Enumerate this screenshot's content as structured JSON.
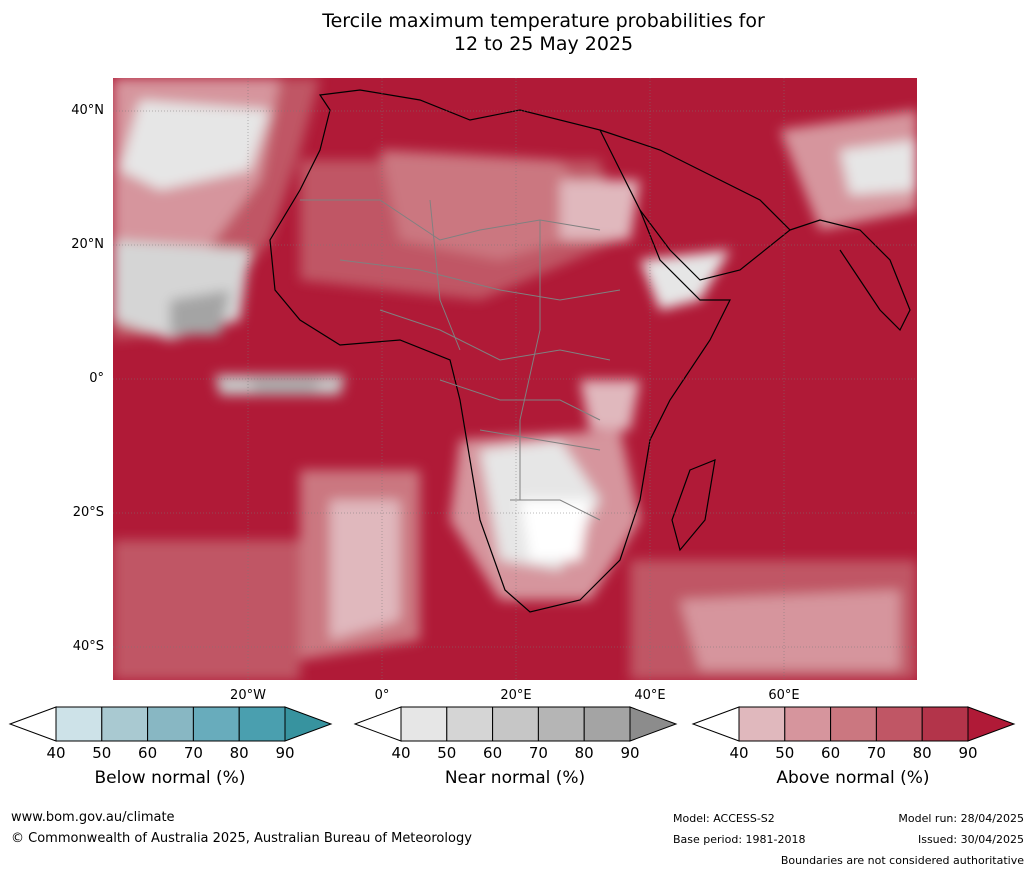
{
  "title_line1": "Tercile maximum temperature probabilities for",
  "title_line2": "12 to 25 May 2025",
  "map": {
    "lat_labels": [
      "40°N",
      "20°N",
      "0°",
      "20°S",
      "40°S"
    ],
    "lon_labels": [
      "20°W",
      "0°",
      "20°E",
      "40°E",
      "60°E"
    ]
  },
  "colorbars": {
    "below": {
      "title": "Below normal (%)",
      "ticks": [
        "40",
        "50",
        "60",
        "70",
        "80",
        "90"
      ],
      "colors": [
        "#ffffff",
        "#cde2e8",
        "#a9c9d1",
        "#88b7c3",
        "#68acbc",
        "#4a9faf",
        "#37939f"
      ]
    },
    "near": {
      "title": "Near normal (%)",
      "ticks": [
        "40",
        "50",
        "60",
        "70",
        "80",
        "90"
      ],
      "colors": [
        "#ffffff",
        "#e6e6e6",
        "#d5d5d5",
        "#c6c6c6",
        "#b5b5b5",
        "#a4a4a4",
        "#8c8c8c"
      ]
    },
    "above": {
      "title": "Above normal (%)",
      "ticks": [
        "40",
        "50",
        "60",
        "70",
        "80",
        "90"
      ],
      "colors": [
        "#ffffff",
        "#e0b8bd",
        "#d6959d",
        "#cb7780",
        "#c05665",
        "#b3344a",
        "#b01a37"
      ]
    }
  },
  "footer": {
    "website": "www.bom.gov.au/climate",
    "copyright": "© Commonwealth of Australia 2025, Australian Bureau of Meteorology",
    "model": "Model: ACCESS-S2",
    "base_period": "Base period: 1981-2018",
    "model_run": "Model run: 28/04/2025",
    "issued": "Issued: 30/04/2025",
    "disclaimer": "Boundaries are not considered authoritative"
  }
}
